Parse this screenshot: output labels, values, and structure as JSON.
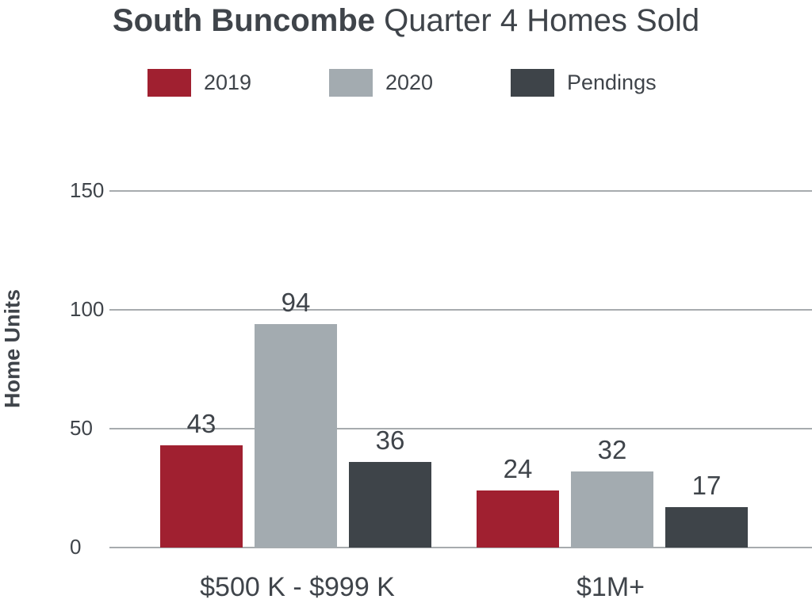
{
  "title": {
    "bold": "South Buncombe",
    "rest": "Quarter 4 Homes Sold"
  },
  "chart_data": {
    "type": "bar",
    "title": "South Buncombe Quarter 4 Homes Sold",
    "xlabel": "",
    "ylabel": "Home Units",
    "categories": [
      "$500 K - $999 K",
      "$1M+"
    ],
    "series": [
      {
        "name": "2019",
        "color": "#a02030",
        "values": [
          43,
          24
        ]
      },
      {
        "name": "2020",
        "color": "#a3abb0",
        "values": [
          94,
          32
        ]
      },
      {
        "name": "Pendings",
        "color": "#3e4449",
        "values": [
          36,
          17
        ]
      }
    ],
    "ylim": [
      0,
      150
    ],
    "yticks": [
      0,
      50,
      100,
      150
    ],
    "grid": true,
    "legend_position": "top"
  }
}
